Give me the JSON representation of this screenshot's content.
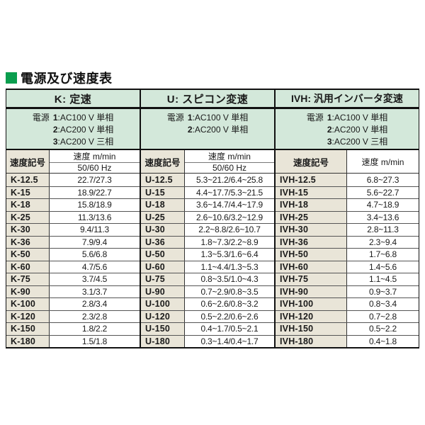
{
  "title": "電源及び速度表",
  "colors": {
    "section_header_green": "#d3e8da",
    "code_column_beige": "#e9e5d8",
    "title_square_green": "#0a9e4e",
    "border_black": "#111111"
  },
  "sections": [
    {
      "key": "K",
      "header": "K: 定速",
      "power_label": "電源",
      "power_lines": [
        {
          "n": "1",
          "t": ":AC100 V 単相"
        },
        {
          "n": "2",
          "t": ":AC200 V 単相"
        },
        {
          "n": "3",
          "t": ":AC200 V 三相"
        }
      ],
      "speed_code_header": "速度記号",
      "speed_value_header": "速度 m/min",
      "speed_value_subheader": "50/60 Hz",
      "rows": [
        {
          "code": "K-12.5",
          "value": "22.7/27.3"
        },
        {
          "code": "K-15",
          "value": "18.9/22.7"
        },
        {
          "code": "K-18",
          "value": "15.8/18.9"
        },
        {
          "code": "K-25",
          "value": "11.3/13.6"
        },
        {
          "code": "K-30",
          "value": "9.4/11.3"
        },
        {
          "code": "K-36",
          "value": "7.9/9.4"
        },
        {
          "code": "K-50",
          "value": "5.6/6.8"
        },
        {
          "code": "K-60",
          "value": "4.7/5.6"
        },
        {
          "code": "K-75",
          "value": "3.7/4.5"
        },
        {
          "code": "K-90",
          "value": "3.1/3.7"
        },
        {
          "code": "K-100",
          "value": "2.8/3.4"
        },
        {
          "code": "K-120",
          "value": "2.3/2.8"
        },
        {
          "code": "K-150",
          "value": "1.8/2.2"
        },
        {
          "code": "K-180",
          "value": "1.5/1.8"
        }
      ]
    },
    {
      "key": "U",
      "header": "U: スピコン変速",
      "power_label": "電源",
      "power_lines": [
        {
          "n": "1",
          "t": ":AC100 V 単相"
        },
        {
          "n": "2",
          "t": ":AC200 V 単相"
        }
      ],
      "speed_code_header": "速度記号",
      "speed_value_header": "速度 m/min",
      "speed_value_subheader": "50/60 Hz",
      "rows": [
        {
          "code": "U-12.5",
          "value": "5.3~21.2/6.4~25.8"
        },
        {
          "code": "U-15",
          "value": "4.4~17.7/5.3~21.5"
        },
        {
          "code": "U-18",
          "value": "3.6~14.7/4.4~17.9"
        },
        {
          "code": "U-25",
          "value": "2.6~10.6/3.2~12.9"
        },
        {
          "code": "U-30",
          "value": "2.2~8.8/2.6~10.7"
        },
        {
          "code": "U-36",
          "value": "1.8~7.3/2.2~8.9"
        },
        {
          "code": "U-50",
          "value": "1.3~5.3/1.6~6.4"
        },
        {
          "code": "U-60",
          "value": "1.1~4.4/1.3~5.3"
        },
        {
          "code": "U-75",
          "value": "0.8~3.5/1.0~4.3"
        },
        {
          "code": "U-90",
          "value": "0.7~2.9/0.8~3.5"
        },
        {
          "code": "U-100",
          "value": "0.6~2.6/0.8~3.2"
        },
        {
          "code": "U-120",
          "value": "0.5~2.2/0.6~2.6"
        },
        {
          "code": "U-150",
          "value": "0.4~1.7/0.5~2.1"
        },
        {
          "code": "U-180",
          "value": "0.3~1.4/0.4~1.7"
        }
      ]
    },
    {
      "key": "IVH",
      "header": "IVH: 汎用インバータ変速",
      "power_label": "電源",
      "power_lines": [
        {
          "n": "1",
          "t": ":AC100 V 単相"
        },
        {
          "n": "2",
          "t": ":AC200 V 単相"
        },
        {
          "n": "3",
          "t": ":AC200 V 三相"
        }
      ],
      "speed_code_header": "速度記号",
      "speed_value_header": "速度 m/min",
      "speed_value_subheader": null,
      "rows": [
        {
          "code": "IVH-12.5",
          "value": "6.8~27.3"
        },
        {
          "code": "IVH-15",
          "value": "5.6~22.7"
        },
        {
          "code": "IVH-18",
          "value": "4.7~18.9"
        },
        {
          "code": "IVH-25",
          "value": "3.4~13.6"
        },
        {
          "code": "IVH-30",
          "value": "2.8~11.3"
        },
        {
          "code": "IVH-36",
          "value": "2.3~9.4"
        },
        {
          "code": "IVH-50",
          "value": "1.7~6.8"
        },
        {
          "code": "IVH-60",
          "value": "1.4~5.6"
        },
        {
          "code": "IVH-75",
          "value": "1.1~4.5"
        },
        {
          "code": "IVH-90",
          "value": "0.9~3.7"
        },
        {
          "code": "IVH-100",
          "value": "0.8~3.4"
        },
        {
          "code": "IVH-120",
          "value": "0.7~2.8"
        },
        {
          "code": "IVH-150",
          "value": "0.5~2.2"
        },
        {
          "code": "IVH-180",
          "value": "0.4~1.8"
        }
      ]
    }
  ]
}
